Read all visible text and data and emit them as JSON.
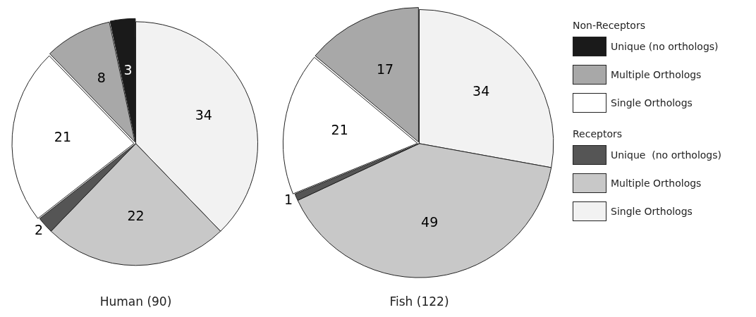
{
  "chart_data": {
    "type": "pie",
    "categories": [
      "Single Orthologs",
      "Multiple Orthologs",
      "Unique  (no orthologs)",
      "Single Orthologs",
      "Multiple Orthologs",
      "Unique (no orthologs)"
    ],
    "colors": [
      "#f2f2f2",
      "#c8c8c8",
      "#555555",
      "#ffffff",
      "#a8a8a8",
      "#1a1a1a"
    ],
    "series": [
      {
        "name": "Human (90)",
        "values": [
          34,
          22,
          2,
          21,
          8,
          3
        ]
      },
      {
        "name": "Fish (122)",
        "values": [
          34,
          49,
          1,
          21,
          17,
          null
        ]
      }
    ],
    "data_labels": true,
    "legend": "right",
    "annotations": [
      "Non-Receptors",
      "Receptors"
    ]
  }
}
